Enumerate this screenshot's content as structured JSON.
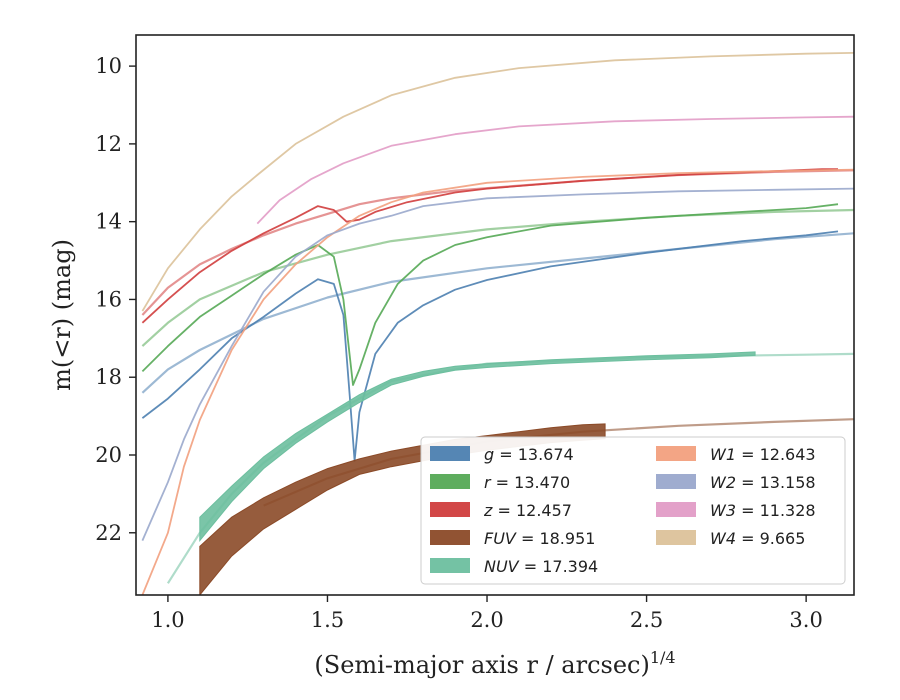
{
  "chart_data": {
    "type": "line",
    "xlabel": "(Semi-major axis r / arcsec)",
    "xlabel_exponent": "1/4",
    "ylabel": "m(<r) (mag)",
    "xlim": [
      0.9,
      3.15
    ],
    "ylim": [
      23.6,
      9.2
    ],
    "y_inverted": true,
    "x_ticks": [
      "1.0",
      "1.5",
      "2.0",
      "2.5",
      "3.0"
    ],
    "y_ticks": [
      "10",
      "12",
      "14",
      "16",
      "18",
      "20",
      "22"
    ],
    "grid": false,
    "legend_placement": "lower-right",
    "series": [
      {
        "name": "g = 13.674",
        "legend_var": "g",
        "legend_val": "= 13.674",
        "color": "#4c7fb0",
        "points": [
          [
            0.92,
            19.05
          ],
          [
            1.0,
            18.55
          ],
          [
            1.1,
            17.8
          ],
          [
            1.2,
            17.0
          ],
          [
            1.3,
            16.45
          ],
          [
            1.4,
            15.85
          ],
          [
            1.47,
            15.48
          ],
          [
            1.52,
            15.6
          ],
          [
            1.55,
            16.4
          ],
          [
            1.57,
            18.5
          ],
          [
            1.585,
            20.15
          ],
          [
            1.6,
            18.9
          ],
          [
            1.65,
            17.4
          ],
          [
            1.72,
            16.6
          ],
          [
            1.8,
            16.15
          ],
          [
            1.9,
            15.75
          ],
          [
            2.0,
            15.5
          ],
          [
            2.2,
            15.15
          ],
          [
            2.5,
            14.8
          ],
          [
            2.8,
            14.5
          ],
          [
            3.0,
            14.35
          ],
          [
            3.1,
            14.25
          ]
        ],
        "smooth": [
          [
            0.92,
            18.4
          ],
          [
            1.0,
            17.8
          ],
          [
            1.1,
            17.3
          ],
          [
            1.3,
            16.5
          ],
          [
            1.5,
            15.95
          ],
          [
            1.7,
            15.55
          ],
          [
            2.0,
            15.2
          ],
          [
            2.3,
            14.95
          ],
          [
            2.6,
            14.7
          ],
          [
            2.9,
            14.45
          ],
          [
            3.15,
            14.3
          ]
        ]
      },
      {
        "name": "r = 13.470",
        "legend_var": "r",
        "legend_val": "= 13.470",
        "color": "#55a955",
        "points": [
          [
            0.92,
            17.85
          ],
          [
            1.0,
            17.2
          ],
          [
            1.1,
            16.45
          ],
          [
            1.2,
            15.9
          ],
          [
            1.3,
            15.35
          ],
          [
            1.4,
            14.85
          ],
          [
            1.47,
            14.6
          ],
          [
            1.52,
            14.9
          ],
          [
            1.55,
            16.0
          ],
          [
            1.58,
            18.2
          ],
          [
            1.6,
            17.8
          ],
          [
            1.65,
            16.6
          ],
          [
            1.72,
            15.6
          ],
          [
            1.8,
            15.0
          ],
          [
            1.9,
            14.6
          ],
          [
            2.0,
            14.4
          ],
          [
            2.2,
            14.1
          ],
          [
            2.5,
            13.9
          ],
          [
            2.8,
            13.75
          ],
          [
            3.0,
            13.65
          ],
          [
            3.1,
            13.55
          ]
        ],
        "smooth": [
          [
            0.92,
            17.2
          ],
          [
            1.0,
            16.6
          ],
          [
            1.1,
            16.0
          ],
          [
            1.3,
            15.3
          ],
          [
            1.5,
            14.85
          ],
          [
            1.7,
            14.5
          ],
          [
            2.0,
            14.2
          ],
          [
            2.3,
            14.0
          ],
          [
            2.6,
            13.85
          ],
          [
            2.9,
            13.75
          ],
          [
            3.15,
            13.7
          ]
        ]
      },
      {
        "name": "z = 12.457",
        "legend_var": "z",
        "legend_val": "= 12.457",
        "color": "#d03d3d",
        "points": [
          [
            0.92,
            16.6
          ],
          [
            1.0,
            16.0
          ],
          [
            1.1,
            15.3
          ],
          [
            1.2,
            14.75
          ],
          [
            1.3,
            14.3
          ],
          [
            1.4,
            13.9
          ],
          [
            1.47,
            13.6
          ],
          [
            1.52,
            13.7
          ],
          [
            1.56,
            14.0
          ],
          [
            1.6,
            13.95
          ],
          [
            1.65,
            13.75
          ],
          [
            1.75,
            13.5
          ],
          [
            1.9,
            13.25
          ],
          [
            2.0,
            13.15
          ],
          [
            2.3,
            12.95
          ],
          [
            2.6,
            12.8
          ],
          [
            2.9,
            12.7
          ],
          [
            3.05,
            12.65
          ],
          [
            3.1,
            12.65
          ]
        ],
        "smooth": [
          [
            0.92,
            16.4
          ],
          [
            1.0,
            15.7
          ],
          [
            1.1,
            15.1
          ],
          [
            1.2,
            14.7
          ],
          [
            1.3,
            14.35
          ],
          [
            1.4,
            14.05
          ],
          [
            1.5,
            13.8
          ],
          [
            1.6,
            13.55
          ],
          [
            1.7,
            13.4
          ],
          [
            1.9,
            13.2
          ],
          [
            2.3,
            12.95
          ],
          [
            2.6,
            12.8
          ],
          [
            2.9,
            12.72
          ],
          [
            3.15,
            12.68
          ]
        ]
      },
      {
        "name": "FUV = 18.951",
        "legend_var": "FUV",
        "legend_val": "= 18.951",
        "color": "#8b4a28",
        "band_upper": [
          [
            1.1,
            22.35
          ],
          [
            1.2,
            21.6
          ],
          [
            1.3,
            21.1
          ],
          [
            1.4,
            20.7
          ],
          [
            1.5,
            20.35
          ],
          [
            1.6,
            20.1
          ],
          [
            1.7,
            19.9
          ],
          [
            1.8,
            19.75
          ],
          [
            1.9,
            19.6
          ],
          [
            2.0,
            19.5
          ],
          [
            2.1,
            19.4
          ],
          [
            2.2,
            19.3
          ],
          [
            2.3,
            19.22
          ],
          [
            2.37,
            19.2
          ]
        ],
        "band_lower": [
          [
            1.1,
            23.6
          ],
          [
            1.2,
            22.6
          ],
          [
            1.3,
            21.9
          ],
          [
            1.4,
            21.4
          ],
          [
            1.5,
            20.9
          ],
          [
            1.6,
            20.5
          ],
          [
            1.7,
            20.3
          ],
          [
            1.8,
            20.15
          ],
          [
            1.9,
            20.0
          ],
          [
            2.0,
            19.88
          ],
          [
            2.1,
            19.78
          ],
          [
            2.2,
            19.68
          ],
          [
            2.3,
            19.62
          ],
          [
            2.37,
            19.58
          ]
        ],
        "smooth": [
          [
            1.3,
            21.3
          ],
          [
            1.5,
            20.6
          ],
          [
            1.7,
            20.1
          ],
          [
            2.0,
            19.65
          ],
          [
            2.3,
            19.4
          ],
          [
            2.6,
            19.25
          ],
          [
            2.9,
            19.15
          ],
          [
            3.15,
            19.08
          ]
        ]
      },
      {
        "name": "NUV = 17.394",
        "legend_var": "NUV",
        "legend_val": "= 17.394",
        "color": "#6dbf9f",
        "band_upper": [
          [
            1.1,
            21.6
          ],
          [
            1.2,
            20.8
          ],
          [
            1.3,
            20.05
          ],
          [
            1.4,
            19.45
          ],
          [
            1.5,
            18.95
          ],
          [
            1.6,
            18.45
          ],
          [
            1.7,
            18.05
          ],
          [
            1.8,
            17.85
          ],
          [
            1.9,
            17.72
          ],
          [
            2.0,
            17.65
          ],
          [
            2.2,
            17.55
          ],
          [
            2.5,
            17.45
          ],
          [
            2.7,
            17.4
          ],
          [
            2.84,
            17.35
          ]
        ],
        "band_lower": [
          [
            1.1,
            22.2
          ],
          [
            1.2,
            21.2
          ],
          [
            1.3,
            20.35
          ],
          [
            1.4,
            19.7
          ],
          [
            1.5,
            19.15
          ],
          [
            1.6,
            18.65
          ],
          [
            1.7,
            18.2
          ],
          [
            1.8,
            17.98
          ],
          [
            1.9,
            17.82
          ],
          [
            2.0,
            17.75
          ],
          [
            2.2,
            17.65
          ],
          [
            2.5,
            17.55
          ],
          [
            2.7,
            17.5
          ],
          [
            2.84,
            17.44
          ]
        ],
        "smooth": [
          [
            1.0,
            23.3
          ],
          [
            1.1,
            22.0
          ],
          [
            1.2,
            21.0
          ],
          [
            1.3,
            20.2
          ],
          [
            1.5,
            19.0
          ],
          [
            1.7,
            18.1
          ],
          [
            2.0,
            17.65
          ],
          [
            2.5,
            17.48
          ],
          [
            3.0,
            17.42
          ],
          [
            3.15,
            17.4
          ]
        ]
      },
      {
        "name": "W1 = 12.643",
        "legend_var": "W1",
        "legend_val": "= 12.643",
        "color": "#f2a07e",
        "points": [
          [
            0.92,
            23.6
          ],
          [
            1.0,
            22.0
          ],
          [
            1.05,
            20.3
          ],
          [
            1.1,
            19.1
          ],
          [
            1.2,
            17.3
          ],
          [
            1.3,
            16.0
          ],
          [
            1.4,
            15.1
          ],
          [
            1.5,
            14.4
          ],
          [
            1.6,
            13.85
          ],
          [
            1.7,
            13.5
          ],
          [
            1.8,
            13.25
          ],
          [
            2.0,
            13.0
          ],
          [
            2.3,
            12.85
          ],
          [
            2.6,
            12.75
          ],
          [
            2.9,
            12.7
          ],
          [
            3.15,
            12.66
          ]
        ]
      },
      {
        "name": "W2 = 13.158",
        "legend_var": "W2",
        "legend_val": "= 13.158",
        "color": "#9aa8cc",
        "points": [
          [
            0.92,
            22.2
          ],
          [
            1.0,
            20.7
          ],
          [
            1.05,
            19.6
          ],
          [
            1.1,
            18.7
          ],
          [
            1.2,
            17.2
          ],
          [
            1.3,
            15.8
          ],
          [
            1.4,
            14.9
          ],
          [
            1.5,
            14.35
          ],
          [
            1.6,
            14.05
          ],
          [
            1.7,
            13.85
          ],
          [
            1.8,
            13.6
          ],
          [
            2.0,
            13.4
          ],
          [
            2.3,
            13.3
          ],
          [
            2.6,
            13.22
          ],
          [
            2.9,
            13.18
          ],
          [
            3.15,
            13.15
          ]
        ]
      },
      {
        "name": "W3 = 11.328",
        "legend_var": "W3",
        "legend_val": "= 11.328",
        "color": "#e29cc6",
        "points": [
          [
            1.28,
            14.05
          ],
          [
            1.35,
            13.45
          ],
          [
            1.45,
            12.9
          ],
          [
            1.55,
            12.5
          ],
          [
            1.7,
            12.05
          ],
          [
            1.9,
            11.75
          ],
          [
            2.1,
            11.55
          ],
          [
            2.4,
            11.42
          ],
          [
            2.7,
            11.36
          ],
          [
            3.0,
            11.32
          ],
          [
            3.15,
            11.3
          ]
        ]
      },
      {
        "name": "W4 = 9.665",
        "legend_var": "W4",
        "legend_val": "= 9.665",
        "color": "#dcc29a",
        "points": [
          [
            0.92,
            16.3
          ],
          [
            1.0,
            15.2
          ],
          [
            1.1,
            14.2
          ],
          [
            1.2,
            13.35
          ],
          [
            1.28,
            12.8
          ],
          [
            1.4,
            12.0
          ],
          [
            1.55,
            11.3
          ],
          [
            1.7,
            10.75
          ],
          [
            1.9,
            10.3
          ],
          [
            2.1,
            10.05
          ],
          [
            2.4,
            9.85
          ],
          [
            2.7,
            9.75
          ],
          [
            3.0,
            9.68
          ],
          [
            3.15,
            9.66
          ]
        ]
      }
    ]
  }
}
